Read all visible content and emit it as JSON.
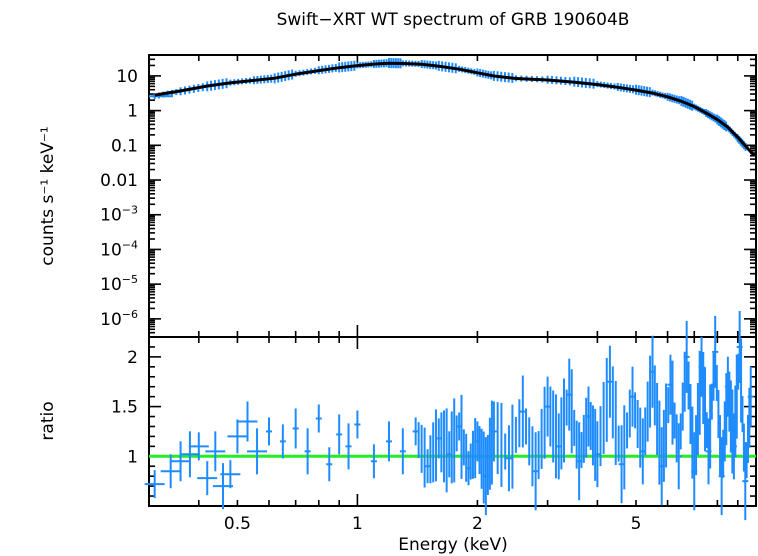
{
  "chart_data": [
    {
      "type": "scatter",
      "title": "Swift−XRT WT spectrum of GRB 190604B",
      "ylabel": "counts s⁻¹ keV⁻¹",
      "xlabel": "Energy (keV)",
      "xscale": "log",
      "yscale": "log",
      "xlim": [
        0.3,
        10
      ],
      "ylim": [
        3e-07,
        40
      ],
      "y_tick_labels": [
        {
          "value": 10,
          "label": "10"
        },
        {
          "value": 1,
          "label": "1"
        },
        {
          "value": 0.1,
          "label": "0.1"
        },
        {
          "value": 0.01,
          "label": "0.01"
        },
        {
          "value": 0.001,
          "base": "10",
          "exp": "−3"
        },
        {
          "value": 0.0001,
          "base": "10",
          "exp": "−4"
        },
        {
          "value": 1e-05,
          "base": "10",
          "exp": "−5"
        },
        {
          "value": 1e-06,
          "base": "10",
          "exp": "−6"
        }
      ],
      "series": [
        {
          "name": "data",
          "color": "#1e8cff",
          "points": [
            [
              0.31,
              2.6
            ],
            [
              0.36,
              3.6
            ],
            [
              0.42,
              5.0
            ],
            [
              0.48,
              6.4
            ],
            [
              0.55,
              7.5
            ],
            [
              0.62,
              8.5
            ],
            [
              0.7,
              11.5
            ],
            [
              0.8,
              14.5
            ],
            [
              0.9,
              17.5
            ],
            [
              1.0,
              20.0
            ],
            [
              1.1,
              22.0
            ],
            [
              1.2,
              23.5
            ],
            [
              1.3,
              23.0
            ],
            [
              1.45,
              22.0
            ],
            [
              1.6,
              19.5
            ],
            [
              1.8,
              16.0
            ],
            [
              2.0,
              12.5
            ],
            [
              2.2,
              10.0
            ],
            [
              2.5,
              8.5
            ],
            [
              3.0,
              7.8
            ],
            [
              3.5,
              6.8
            ],
            [
              4.0,
              5.8
            ],
            [
              4.5,
              4.8
            ],
            [
              5.0,
              4.0
            ],
            [
              5.5,
              3.3
            ],
            [
              6.0,
              2.5
            ],
            [
              6.5,
              1.9
            ],
            [
              7.0,
              1.3
            ],
            [
              7.5,
              0.85
            ],
            [
              8.0,
              0.55
            ],
            [
              8.5,
              0.32
            ],
            [
              9.0,
              0.16
            ],
            [
              9.5,
              0.08
            ]
          ]
        },
        {
          "name": "model",
          "color": "#000000",
          "points": [
            [
              0.31,
              2.8
            ],
            [
              0.36,
              3.7
            ],
            [
              0.42,
              5.1
            ],
            [
              0.48,
              6.3
            ],
            [
              0.55,
              7.4
            ],
            [
              0.62,
              8.6
            ],
            [
              0.7,
              11.2
            ],
            [
              0.8,
              14.2
            ],
            [
              0.9,
              17.2
            ],
            [
              1.0,
              19.8
            ],
            [
              1.1,
              21.8
            ],
            [
              1.2,
              23.0
            ],
            [
              1.3,
              22.8
            ],
            [
              1.45,
              21.6
            ],
            [
              1.6,
              19.0
            ],
            [
              1.8,
              15.6
            ],
            [
              2.0,
              12.3
            ],
            [
              2.2,
              9.9
            ],
            [
              2.5,
              8.4
            ],
            [
              3.0,
              7.6
            ],
            [
              3.5,
              6.6
            ],
            [
              4.0,
              5.6
            ],
            [
              4.5,
              4.7
            ],
            [
              5.0,
              3.9
            ],
            [
              5.5,
              3.2
            ],
            [
              6.0,
              2.5
            ],
            [
              6.5,
              1.85
            ],
            [
              7.0,
              1.3
            ],
            [
              7.5,
              0.85
            ],
            [
              8.0,
              0.55
            ],
            [
              8.5,
              0.33
            ],
            [
              9.0,
              0.17
            ],
            [
              9.5,
              0.085
            ],
            [
              9.9,
              0.05
            ]
          ]
        }
      ]
    },
    {
      "type": "scatter",
      "ylabel": "ratio",
      "xlabel": "Energy (keV)",
      "xscale": "log",
      "xlim": [
        0.3,
        10
      ],
      "ylim": [
        0.5,
        2.2
      ],
      "x_tick_labels": [
        {
          "value": 0.5,
          "label": "0.5"
        },
        {
          "value": 1,
          "label": "1"
        },
        {
          "value": 2,
          "label": "2"
        },
        {
          "value": 5,
          "label": "5"
        }
      ],
      "y_tick_labels": [
        {
          "value": 2,
          "label": "2"
        },
        {
          "value": 1.5,
          "label": "1.5"
        },
        {
          "value": 1,
          "label": "1"
        }
      ],
      "reference_line": {
        "value": 1.0,
        "color": "#22ee22"
      },
      "series": [
        {
          "name": "ratio",
          "color": "#1e8cff",
          "points": [
            [
              0.31,
              0.72
            ],
            [
              0.34,
              0.85
            ],
            [
              0.36,
              0.95
            ],
            [
              0.38,
              1.02
            ],
            [
              0.4,
              1.1
            ],
            [
              0.42,
              0.78
            ],
            [
              0.44,
              1.05
            ],
            [
              0.46,
              0.7
            ],
            [
              0.48,
              0.82
            ],
            [
              0.5,
              1.2
            ],
            [
              0.53,
              1.35
            ],
            [
              0.56,
              1.05
            ],
            [
              0.6,
              1.25
            ],
            [
              0.65,
              1.15
            ],
            [
              0.7,
              1.28
            ],
            [
              0.75,
              1.05
            ],
            [
              0.8,
              1.38
            ],
            [
              0.85,
              0.92
            ],
            [
              0.9,
              1.22
            ],
            [
              0.95,
              1.1
            ],
            [
              1.0,
              1.32
            ],
            [
              1.1,
              0.95
            ],
            [
              1.2,
              1.15
            ],
            [
              1.3,
              1.05
            ],
            [
              1.4,
              1.25
            ],
            [
              1.5,
              0.9
            ],
            [
              1.6,
              1.18
            ],
            [
              1.7,
              1.02
            ],
            [
              1.8,
              1.3
            ],
            [
              1.9,
              0.88
            ],
            [
              2.0,
              1.15
            ],
            [
              2.1,
              0.8
            ],
            [
              2.2,
              1.25
            ],
            [
              2.4,
              0.98
            ],
            [
              2.6,
              1.45
            ],
            [
              2.8,
              0.85
            ],
            [
              3.0,
              1.5
            ],
            [
              3.2,
              1.1
            ],
            [
              3.4,
              1.62
            ],
            [
              3.6,
              0.95
            ],
            [
              3.8,
              1.4
            ],
            [
              4.0,
              1.02
            ],
            [
              4.3,
              1.75
            ],
            [
              4.6,
              0.92
            ],
            [
              4.9,
              1.6
            ],
            [
              5.2,
              1.05
            ],
            [
              5.5,
              1.85
            ],
            [
              5.8,
              0.9
            ],
            [
              6.1,
              1.72
            ],
            [
              6.4,
              1.0
            ],
            [
              6.7,
              2.0
            ],
            [
              7.0,
              0.85
            ],
            [
              7.3,
              1.9
            ],
            [
              7.6,
              1.05
            ],
            [
              7.9,
              2.05
            ],
            [
              8.2,
              0.8
            ],
            [
              8.5,
              1.7
            ],
            [
              8.8,
              1.1
            ],
            [
              9.1,
              2.1
            ],
            [
              9.4,
              0.75
            ],
            [
              9.7,
              1.6
            ]
          ]
        }
      ]
    }
  ]
}
